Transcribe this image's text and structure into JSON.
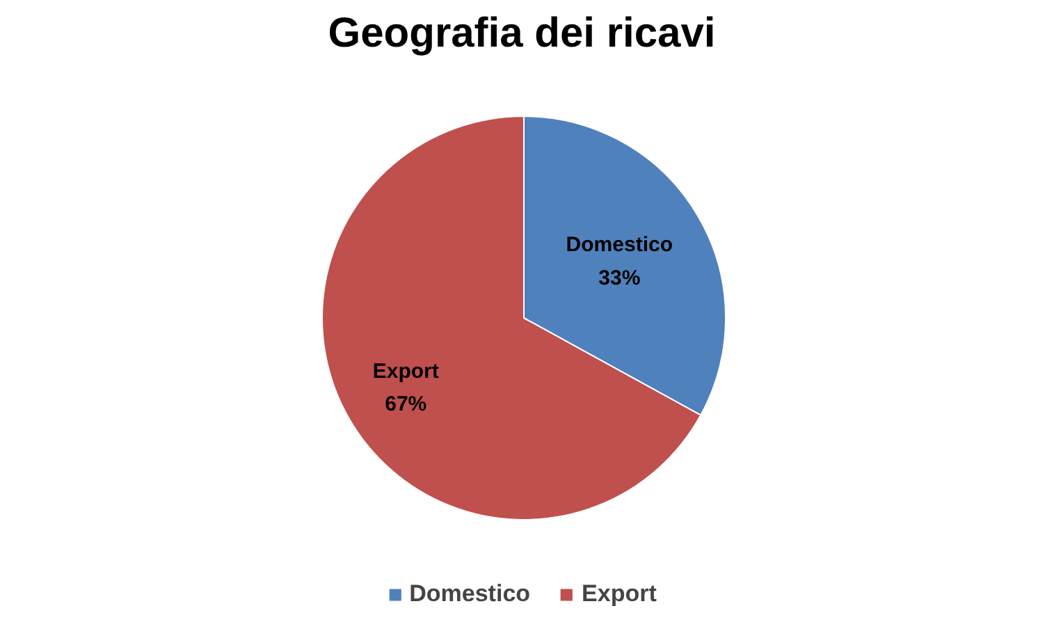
{
  "chart_data": {
    "type": "pie",
    "title": "Geografia dei ricavi",
    "categories": [
      "Domestico",
      "Export"
    ],
    "values": [
      33,
      67
    ],
    "colors": [
      "#4f81bd",
      "#c0504d"
    ],
    "value_labels": [
      "33%",
      "67%"
    ],
    "legend": "bottom"
  }
}
